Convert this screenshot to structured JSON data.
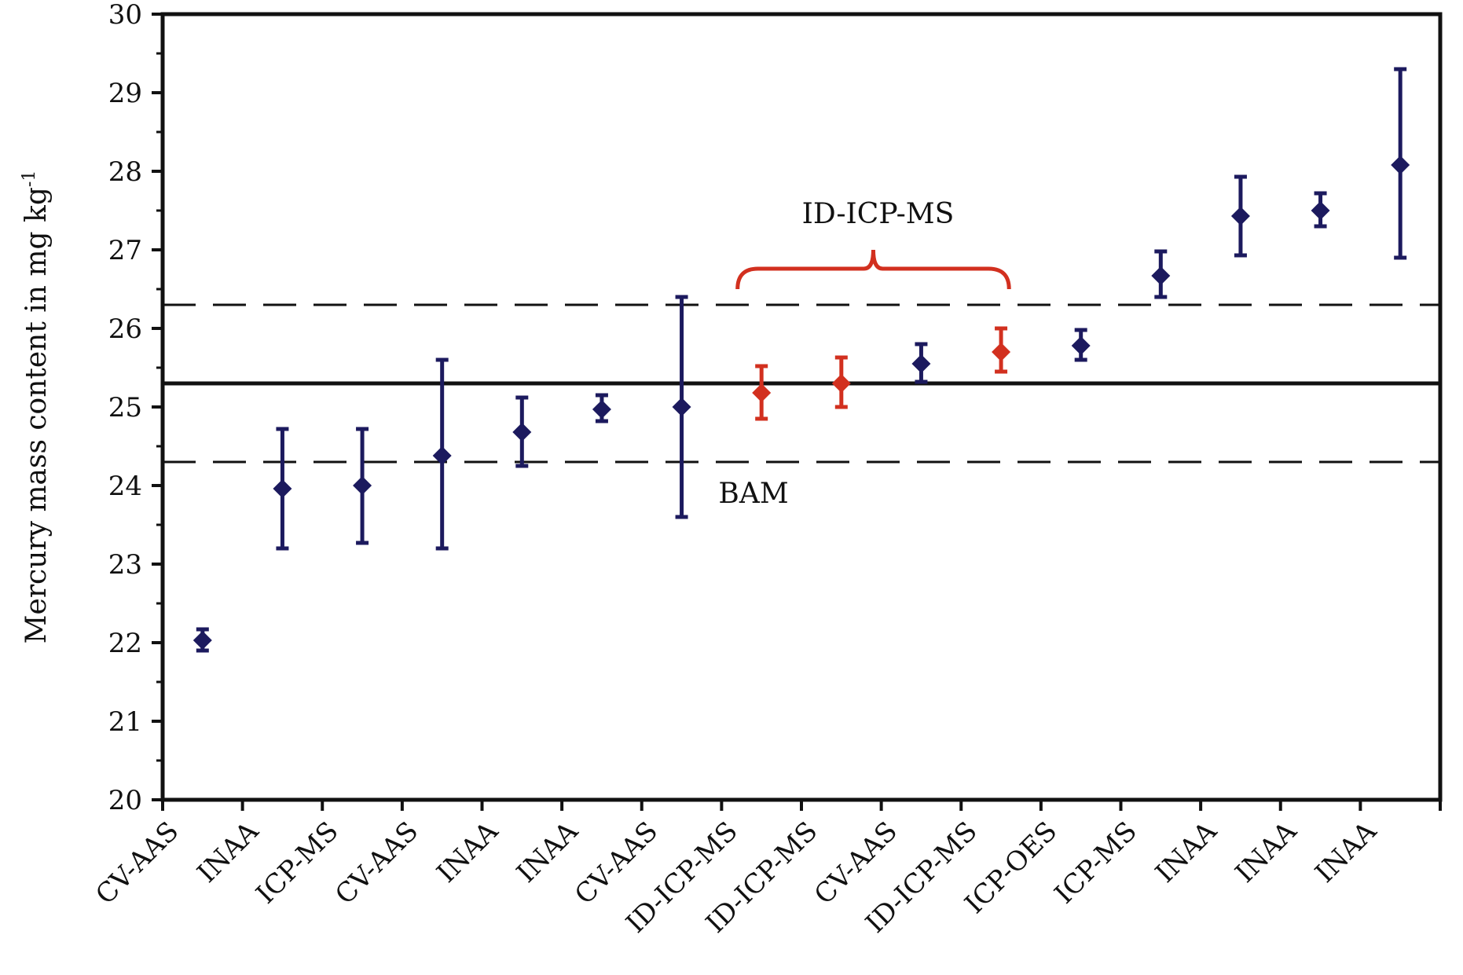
{
  "chart_data": {
    "type": "scatter",
    "title": "",
    "xlabel": "",
    "ylabel": "Mercury mass content in mg kg",
    "ylabel_superscript": "-1",
    "ylim": [
      20,
      30
    ],
    "yticks": [
      "20",
      "21",
      "22",
      "23",
      "24",
      "25",
      "26",
      "27",
      "28",
      "29",
      "30"
    ],
    "grid": false,
    "categories": [
      "CV-AAS",
      "INAA",
      "ICP-MS",
      "CV-AAS",
      "INAA",
      "INAA",
      "CV-AAS",
      "ID-ICP-MS",
      "ID-ICP-MS",
      "CV-AAS",
      "ID-ICP-MS",
      "ICP-OES",
      "ICP-MS",
      "INAA",
      "INAA",
      "INAA"
    ],
    "points": [
      {
        "category_index": 0,
        "x": 0.5,
        "y": 22.03,
        "low": 21.9,
        "high": 22.17,
        "group": "other"
      },
      {
        "category_index": 1,
        "x": 1.5,
        "y": 23.96,
        "low": 23.2,
        "high": 24.72,
        "group": "other"
      },
      {
        "category_index": 2,
        "x": 2.5,
        "y": 24.0,
        "low": 23.27,
        "high": 24.72,
        "group": "other"
      },
      {
        "category_index": 3,
        "x": 3.5,
        "y": 24.38,
        "low": 23.2,
        "high": 25.6,
        "group": "other"
      },
      {
        "category_index": 4,
        "x": 4.5,
        "y": 24.68,
        "low": 24.25,
        "high": 25.12,
        "group": "other"
      },
      {
        "category_index": 5,
        "x": 5.5,
        "y": 24.97,
        "low": 24.82,
        "high": 25.15,
        "group": "other"
      },
      {
        "category_index": 6,
        "x": 6.5,
        "y": 25.0,
        "low": 23.6,
        "high": 26.4,
        "group": "other"
      },
      {
        "category_index": 7,
        "x": 7.5,
        "y": 25.18,
        "low": 24.85,
        "high": 25.52,
        "group": "ID-ICP-MS"
      },
      {
        "category_index": 8,
        "x": 8.5,
        "y": 25.3,
        "low": 25.0,
        "high": 25.63,
        "group": "ID-ICP-MS"
      },
      {
        "category_index": 9,
        "x": 9.5,
        "y": 25.55,
        "low": 25.32,
        "high": 25.8,
        "group": "other"
      },
      {
        "category_index": 10,
        "x": 10.5,
        "y": 25.7,
        "low": 25.45,
        "high": 26.0,
        "group": "ID-ICP-MS"
      },
      {
        "category_index": 11,
        "x": 11.5,
        "y": 25.78,
        "low": 25.6,
        "high": 25.98,
        "group": "other"
      },
      {
        "category_index": 12,
        "x": 12.5,
        "y": 26.67,
        "low": 26.4,
        "high": 26.98,
        "group": "other"
      },
      {
        "category_index": 13,
        "x": 13.5,
        "y": 27.43,
        "low": 26.93,
        "high": 27.93,
        "group": "other"
      },
      {
        "category_index": 14,
        "x": 14.5,
        "y": 27.5,
        "low": 27.3,
        "high": 27.72,
        "group": "other"
      },
      {
        "category_index": 15,
        "x": 15.5,
        "y": 28.08,
        "low": 26.9,
        "high": 29.3,
        "group": "other"
      }
    ],
    "reference_lines": [
      {
        "y": 25.3,
        "style": "solid"
      },
      {
        "y": 26.3,
        "style": "dashed"
      },
      {
        "y": 24.3,
        "style": "dashed"
      }
    ],
    "annotations": [
      {
        "text": "ID-ICP-MS",
        "brace_from_x": 7.2,
        "brace_to_x": 10.6
      },
      {
        "text": "BAM"
      }
    ],
    "colors": {
      "other": "#1c1a5e",
      "ID-ICP-MS": "#d2301f",
      "axis": "#111111",
      "brace": "#d2301f"
    }
  }
}
